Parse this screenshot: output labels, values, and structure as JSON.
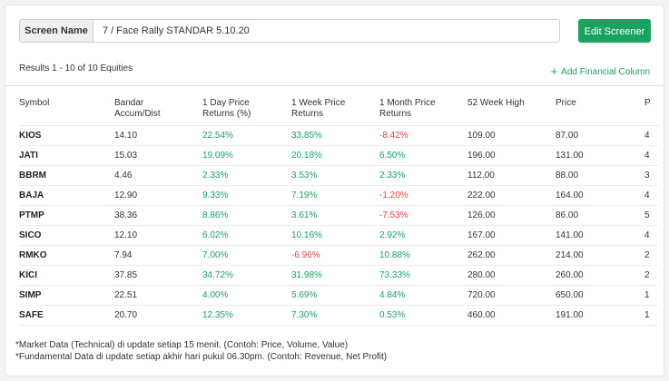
{
  "screen": {
    "name_label": "Screen Name",
    "name_value": "7 / Face Rally STANDAR 5.10.20",
    "edit_label": "Edit Screener"
  },
  "results_text": "Results 1 - 10 of 10 Equities",
  "add_column_label": "Add Financial Column",
  "table": {
    "headers": [
      [
        "Symbol",
        ""
      ],
      [
        "Bandar",
        "Accum/Dist"
      ],
      [
        "1 Day Price",
        "Returns (%)"
      ],
      [
        "1 Week Price",
        "Returns"
      ],
      [
        "1 Month Price",
        "Returns"
      ],
      [
        "52 Week High",
        ""
      ],
      [
        "Price",
        ""
      ],
      [
        "P",
        ""
      ]
    ],
    "rows": [
      [
        "KIOS",
        "14.10",
        "22.54%",
        "33.85%",
        "-8.42%",
        "109.00",
        "87.00",
        "4"
      ],
      [
        "JATI",
        "15.03",
        "19.09%",
        "20.18%",
        "6.50%",
        "196.00",
        "131.00",
        "4"
      ],
      [
        "BBRM",
        "4.46",
        "2.33%",
        "3.53%",
        "2.33%",
        "112.00",
        "88.00",
        "3"
      ],
      [
        "BAJA",
        "12.90",
        "9.33%",
        "7.19%",
        "-1.20%",
        "222.00",
        "164.00",
        "4"
      ],
      [
        "PTMP",
        "38.36",
        "8.86%",
        "3.61%",
        "-7.53%",
        "126.00",
        "86.00",
        "5"
      ],
      [
        "SICO",
        "12.10",
        "6.02%",
        "10.16%",
        "2.92%",
        "167.00",
        "141.00",
        "4"
      ],
      [
        "RMKO",
        "7.94",
        "7.00%",
        "-6.96%",
        "10.88%",
        "262.00",
        "214.00",
        "2"
      ],
      [
        "KICI",
        "37.85",
        "34.72%",
        "31.98%",
        "73.33%",
        "280.00",
        "260.00",
        "2"
      ],
      [
        "SIMP",
        "22.51",
        "4.00%",
        "5.69%",
        "4.84%",
        "720.00",
        "650.00",
        "1"
      ],
      [
        "SAFE",
        "20.70",
        "12.35%",
        "7.30%",
        "0.53%",
        "460.00",
        "191.00",
        "1"
      ]
    ]
  },
  "footer": {
    "line1": "*Market Data (Technical) di update setiap 15 menit. (Contoh: Price, Volume, Value)",
    "line2": "*Fundamental Data di update setiap akhir hari pukul 06.30pm. (Contoh: Revenue, Net Profit)"
  },
  "colors": {
    "accent": "#1aa260",
    "negative": "#e04646"
  }
}
